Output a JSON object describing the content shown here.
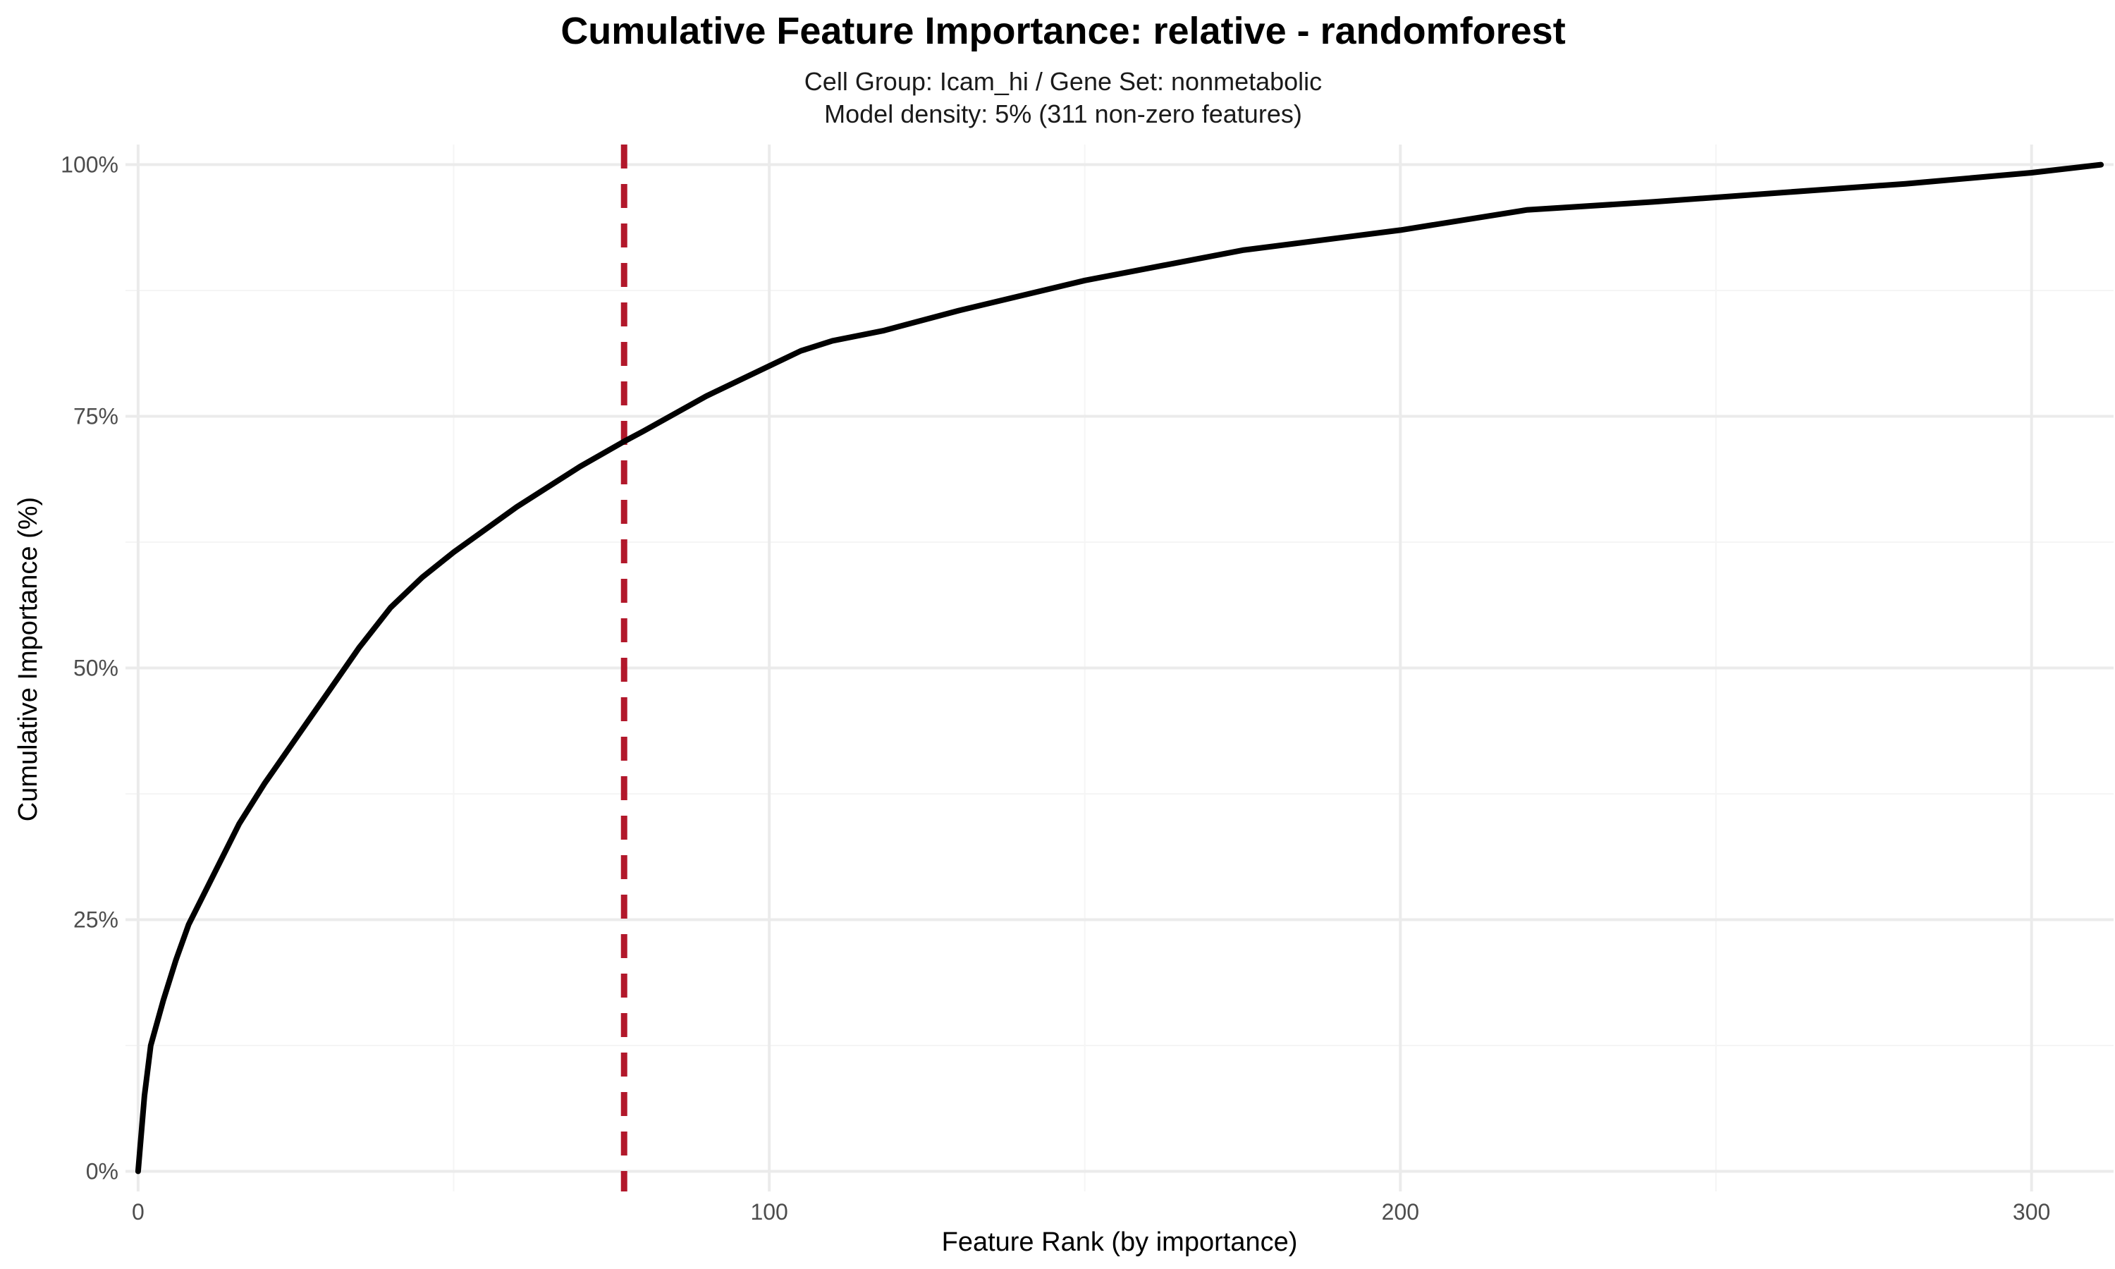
{
  "chart_data": {
    "type": "line",
    "title": "Cumulative Feature Importance: relative - randomforest",
    "subtitle_lines": [
      "Cell Group: Icam_hi / Gene Set: nonmetabolic",
      "Model density: 5% (311 non-zero features)"
    ],
    "xlabel": "Feature Rank (by importance)",
    "ylabel": "Cumulative Importance (%)",
    "xlim": [
      -2,
      313
    ],
    "ylim": [
      -2,
      102
    ],
    "x_ticks": [
      0,
      100,
      200,
      300
    ],
    "x_tick_labels": [
      "0",
      "100",
      "200",
      "300"
    ],
    "y_ticks": [
      0,
      25,
      50,
      75,
      100
    ],
    "y_tick_labels": [
      "0%",
      "25%",
      "50%",
      "75%",
      "100%"
    ],
    "grid": true,
    "legend": "none",
    "series": [
      {
        "color": "#000000",
        "x": [
          0,
          1,
          2,
          4,
          6,
          8,
          12,
          16,
          20,
          25,
          30,
          35,
          40,
          45,
          50,
          60,
          70,
          77,
          80,
          90,
          100,
          105,
          110,
          118,
          130,
          150,
          175,
          200,
          220,
          240,
          260,
          280,
          300,
          311
        ],
        "y": [
          0,
          7.5,
          12.5,
          17,
          21,
          24.5,
          29.5,
          34.5,
          38.5,
          43,
          47.5,
          52,
          56,
          59,
          61.5,
          66,
          70,
          72.5,
          73.5,
          77,
          80,
          81.5,
          82.5,
          83.5,
          85.5,
          88.5,
          91.5,
          93.5,
          95.5,
          96.3,
          97.2,
          98.1,
          99.2,
          100
        ]
      }
    ],
    "reference_lines": [
      {
        "orientation": "vertical",
        "x": 77,
        "color": "#b2182b",
        "style": "dashed"
      }
    ]
  }
}
